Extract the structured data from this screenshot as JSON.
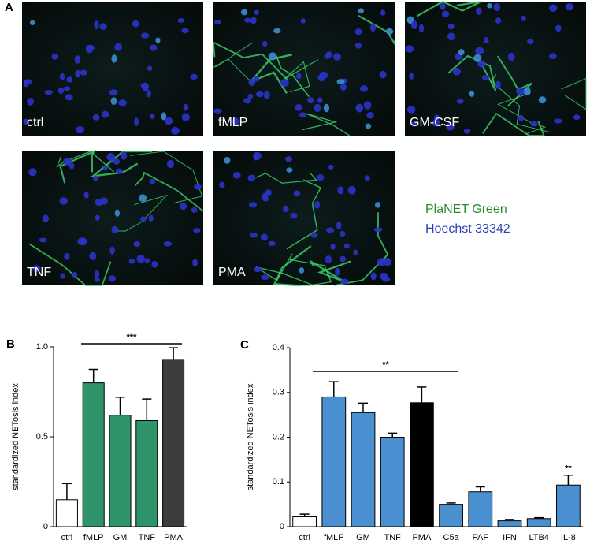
{
  "panel_a": {
    "label": "A",
    "images": [
      "ctrl",
      "fMLP",
      "GM-CSF",
      "TNF",
      "PMA"
    ],
    "legend": [
      "PlaNET Green",
      "Hoechst 33342"
    ]
  },
  "chart_data": [
    {
      "type": "bar",
      "panel_label": "B",
      "y_label": "standardized NETosis index",
      "categories": [
        "ctrl",
        "fMLP",
        "GM",
        "TNF",
        "PMA"
      ],
      "values": [
        0.15,
        0.8,
        0.62,
        0.59,
        0.93
      ],
      "errors": [
        0.09,
        0.075,
        0.1,
        0.12,
        0.065
      ],
      "colors": [
        "#ffffff",
        "#2f946a",
        "#2f946a",
        "#2f946a",
        "#3c3c3c"
      ],
      "ylim": [
        0,
        1
      ],
      "yticks": [
        0,
        0.5,
        {
          "value": 1,
          "label": "1.0"
        }
      ],
      "significance": "***"
    },
    {
      "type": "bar",
      "panel_label": "C",
      "y_label": "standardized NETosis index",
      "categories": [
        "ctrl",
        "fMLP",
        "GM",
        "TNF",
        "PMA",
        "C5a",
        "PAF",
        "IFN",
        "LTB4",
        "IL-8"
      ],
      "values": [
        0.022,
        0.29,
        0.255,
        0.2,
        0.277,
        0.05,
        0.078,
        0.013,
        0.018,
        0.093
      ],
      "errors": [
        0.006,
        0.034,
        0.021,
        0.009,
        0.035,
        0.003,
        0.011,
        0.003,
        0.002,
        0.022
      ],
      "colors": [
        "#ffffff",
        "#4a8fcf",
        "#4a8fcf",
        "#4a8fcf",
        "#000000",
        "#4a8fcf",
        "#4a8fcf",
        "#4a8fcf",
        "#4a8fcf",
        "#4a8fcf"
      ],
      "ylim": [
        0,
        0.4
      ],
      "yticks": [
        0,
        0.1,
        0.2,
        0.3,
        0.4
      ],
      "significance": "**",
      "bar_annotations": [
        null,
        null,
        null,
        null,
        null,
        null,
        null,
        null,
        null,
        "**"
      ]
    }
  ]
}
